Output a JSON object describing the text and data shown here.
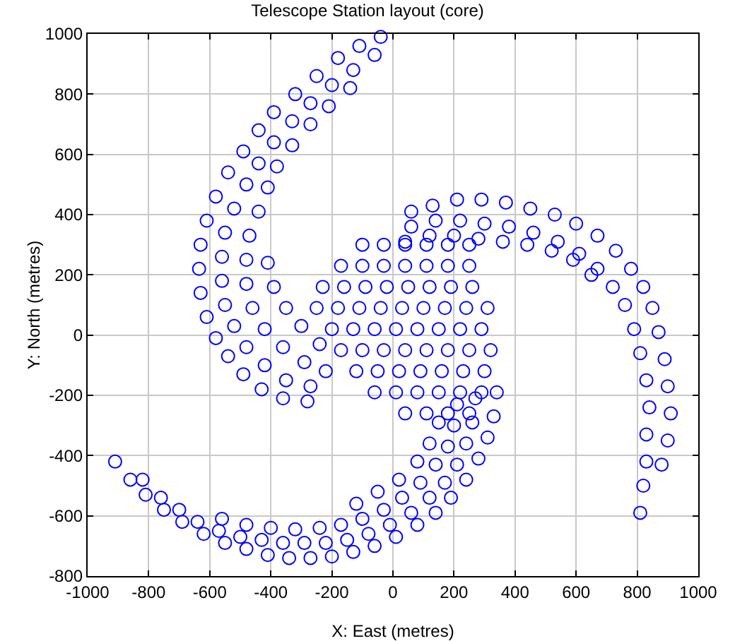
{
  "chart_data": {
    "type": "scatter",
    "title": "Telescope Station layout (core)",
    "xlabel": "X: East (metres)",
    "ylabel": "Y: North (metres)",
    "xlim": [
      -1000,
      1000
    ],
    "xticks": [
      -1000,
      -800,
      -600,
      -400,
      -200,
      0,
      200,
      400,
      600,
      800,
      1000
    ],
    "ylim": [
      -800,
      1000
    ],
    "yticks": [
      -800,
      -600,
      -400,
      -200,
      0,
      200,
      400,
      600,
      800,
      1000
    ],
    "grid": true,
    "marker": "circle",
    "series": [
      {
        "color": "#0000ff",
        "x": [
          -40,
          -110,
          -180,
          -250,
          -320,
          -390,
          -440,
          -490,
          -540,
          -580,
          -610,
          -630,
          -635,
          -630,
          -610,
          -580,
          -540,
          -490,
          -430,
          -360,
          -280,
          -60,
          -130,
          -200,
          -270,
          -330,
          -390,
          -440,
          -480,
          -520,
          -550,
          -560,
          -560,
          -550,
          -520,
          -480,
          -420,
          -350,
          -270,
          -140,
          -210,
          -270,
          -330,
          -380,
          -410,
          -440,
          -470,
          -480,
          -480,
          -460,
          -420,
          -360,
          -290,
          -220,
          -410,
          -390,
          -350,
          -300,
          -240,
          -910,
          -860,
          -810,
          -750,
          -690,
          -620,
          -550,
          -480,
          -410,
          -340,
          -270,
          -200,
          -130,
          -60,
          10,
          80,
          140,
          190,
          240,
          280,
          310,
          330,
          340,
          -820,
          -760,
          -700,
          -640,
          -570,
          -500,
          -430,
          -360,
          -290,
          -220,
          -150,
          -80,
          -10,
          60,
          120,
          170,
          210,
          240,
          260,
          270,
          -560,
          -480,
          -400,
          -320,
          -240,
          -170,
          -100,
          -30,
          30,
          90,
          140,
          180,
          200,
          210,
          -120,
          -50,
          20,
          80,
          120,
          150,
          880,
          900,
          910,
          900,
          890,
          870,
          850,
          820,
          780,
          730,
          670,
          600,
          530,
          450,
          370,
          290,
          210,
          130,
          60,
          810,
          820,
          830,
          830,
          840,
          830,
          810,
          790,
          760,
          720,
          670,
          610,
          540,
          460,
          380,
          300,
          220,
          140,
          60,
          650,
          590,
          520,
          440,
          360,
          280,
          200,
          120,
          40,
          -100,
          -30,
          40,
          110,
          180,
          250,
          -170,
          -100,
          -30,
          40,
          110,
          180,
          250,
          -230,
          -160,
          -90,
          -20,
          50,
          120,
          190,
          260,
          -250,
          -180,
          -110,
          -40,
          30,
          100,
          170,
          240,
          310,
          -200,
          -130,
          -60,
          10,
          80,
          150,
          220,
          290,
          -170,
          -100,
          -30,
          40,
          110,
          180,
          250,
          320,
          -120,
          -50,
          20,
          90,
          160,
          230,
          300,
          -60,
          10,
          80,
          150,
          220,
          290,
          40,
          110,
          180,
          250
        ],
        "values": [
          990,
          960,
          920,
          860,
          800,
          740,
          680,
          610,
          540,
          460,
          380,
          300,
          220,
          140,
          60,
          -10,
          -70,
          -130,
          -180,
          -210,
          -220,
          930,
          880,
          830,
          770,
          710,
          640,
          570,
          500,
          420,
          340,
          260,
          180,
          100,
          30,
          -40,
          -100,
          -150,
          -170,
          820,
          760,
          700,
          630,
          560,
          490,
          410,
          330,
          250,
          170,
          90,
          20,
          -40,
          -90,
          -120,
          240,
          160,
          90,
          30,
          -30,
          -420,
          -480,
          -530,
          -580,
          -620,
          -660,
          -690,
          -710,
          -730,
          -740,
          -740,
          -735,
          -720,
          -700,
          -670,
          -630,
          -590,
          -540,
          -480,
          -410,
          -340,
          -270,
          -190,
          -480,
          -540,
          -580,
          -620,
          -650,
          -670,
          -680,
          -690,
          -690,
          -690,
          -680,
          -660,
          -630,
          -590,
          -540,
          -490,
          -430,
          -360,
          -290,
          -210,
          -610,
          -630,
          -640,
          -645,
          -640,
          -630,
          -610,
          -580,
          -540,
          -490,
          -430,
          -370,
          -300,
          -230,
          -560,
          -520,
          -480,
          -420,
          -360,
          -290,
          -430,
          -350,
          -260,
          -170,
          -80,
          10,
          90,
          160,
          220,
          280,
          330,
          370,
          400,
          420,
          440,
          450,
          450,
          430,
          410,
          -590,
          -500,
          -420,
          -330,
          -240,
          -150,
          -60,
          20,
          100,
          160,
          220,
          270,
          310,
          340,
          360,
          370,
          380,
          380,
          360,
          200,
          250,
          280,
          300,
          310,
          320,
          330,
          330,
          310,
          300,
          300,
          300,
          300,
          300,
          300,
          230,
          230,
          230,
          230,
          230,
          230,
          230,
          160,
          160,
          160,
          160,
          160,
          160,
          160,
          160,
          90,
          90,
          90,
          90,
          90,
          90,
          90,
          90,
          90,
          20,
          20,
          20,
          20,
          20,
          20,
          20,
          20,
          -50,
          -50,
          -50,
          -50,
          -50,
          -50,
          -50,
          -50,
          -120,
          -120,
          -120,
          -120,
          -120,
          -120,
          -120,
          -190,
          -190,
          -190,
          -190,
          -190,
          -190,
          -260,
          -260,
          -260,
          -260
        ]
      }
    ]
  }
}
